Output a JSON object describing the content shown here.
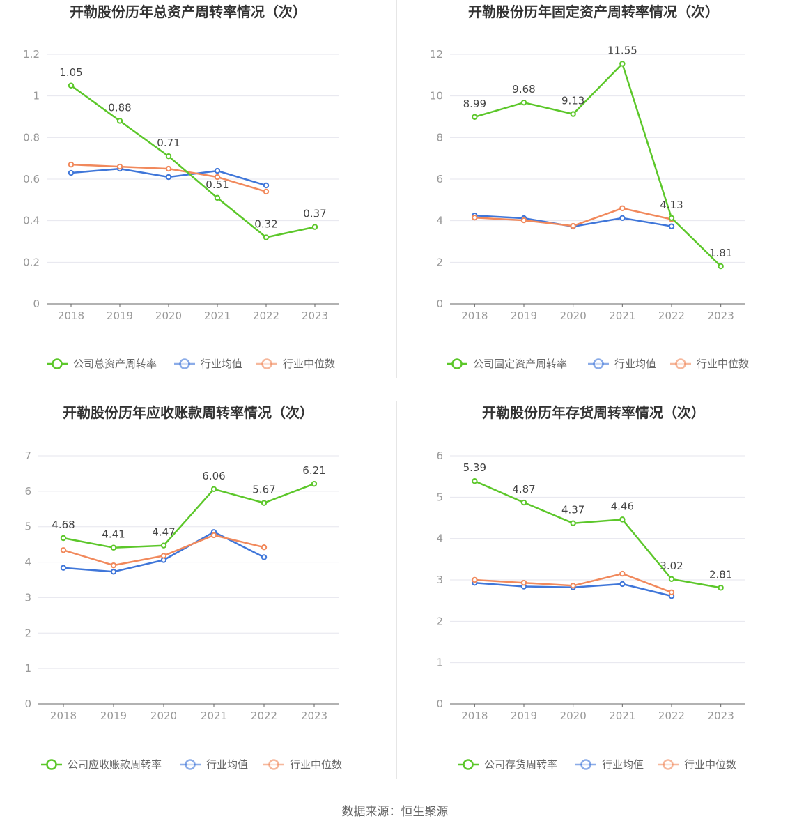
{
  "source_text": "数据来源：恒生聚源",
  "colors": {
    "company": "#5cc72a",
    "avg": "#3f76d9",
    "median": "#f1895c",
    "grid": "#e6e6ee",
    "axis": "#666666"
  },
  "chart_data": [
    {
      "type": "line",
      "title": "开勒股份历年总资产周转率情况（次）",
      "categories": [
        "2018",
        "2019",
        "2020",
        "2021",
        "2022",
        "2023"
      ],
      "ylim": [
        0,
        1.2
      ],
      "yticks": [
        "0",
        "0.2",
        "0.4",
        "0.6",
        "0.8",
        "1",
        "1.2"
      ],
      "ytick_values": [
        0,
        0.2,
        0.4,
        0.6,
        0.8,
        1,
        1.2
      ],
      "series": [
        {
          "name": "公司总资产周转率",
          "role": "company",
          "values": [
            1.05,
            0.88,
            0.71,
            0.51,
            0.32,
            0.37
          ],
          "labels": [
            "1.05",
            "0.88",
            "0.71",
            "0.51",
            "0.32",
            "0.37"
          ]
        },
        {
          "name": "行业均值",
          "role": "avg",
          "values": [
            0.63,
            0.65,
            0.61,
            0.64,
            0.57,
            null
          ]
        },
        {
          "name": "行业中位数",
          "role": "median",
          "values": [
            0.67,
            0.66,
            0.65,
            0.61,
            0.54,
            null
          ]
        }
      ],
      "legend": "bottom"
    },
    {
      "type": "line",
      "title": "开勒股份历年固定资产周转率情况（次）",
      "categories": [
        "2018",
        "2019",
        "2020",
        "2021",
        "2022",
        "2023"
      ],
      "ylim": [
        0,
        12
      ],
      "yticks": [
        "0",
        "2",
        "4",
        "6",
        "8",
        "10",
        "12"
      ],
      "ytick_values": [
        0,
        2,
        4,
        6,
        8,
        10,
        12
      ],
      "series": [
        {
          "name": "公司固定资产周转率",
          "role": "company",
          "values": [
            8.99,
            9.68,
            9.13,
            11.55,
            4.13,
            1.81
          ],
          "labels": [
            "8.99",
            "9.68",
            "9.13",
            "11.55",
            "4.13",
            "1.81"
          ]
        },
        {
          "name": "行业均值",
          "role": "avg",
          "values": [
            4.25,
            4.12,
            3.72,
            4.13,
            3.73,
            null
          ]
        },
        {
          "name": "行业中位数",
          "role": "median",
          "values": [
            4.15,
            4.02,
            3.75,
            4.6,
            4.07,
            null
          ]
        }
      ],
      "legend": "bottom"
    },
    {
      "type": "line",
      "title": "开勒股份历年应收账款周转率情况（次）",
      "categories": [
        "2018",
        "2019",
        "2020",
        "2021",
        "2022",
        "2023"
      ],
      "ylim": [
        0,
        7
      ],
      "yticks": [
        "0",
        "1",
        "2",
        "3",
        "4",
        "5",
        "6",
        "7"
      ],
      "ytick_values": [
        0,
        1,
        2,
        3,
        4,
        5,
        6,
        7
      ],
      "series": [
        {
          "name": "公司应收账款周转率",
          "role": "company",
          "values": [
            4.68,
            4.41,
            4.47,
            6.06,
            5.67,
            6.21
          ],
          "labels": [
            "4.68",
            "4.41",
            "4.47",
            "6.06",
            "5.67",
            "6.21"
          ]
        },
        {
          "name": "行业均值",
          "role": "avg",
          "values": [
            3.84,
            3.73,
            4.06,
            4.85,
            4.14,
            null
          ]
        },
        {
          "name": "行业中位数",
          "role": "median",
          "values": [
            4.34,
            3.91,
            4.18,
            4.76,
            4.42,
            null
          ]
        }
      ],
      "legend": "bottom"
    },
    {
      "type": "line",
      "title": "开勒股份历年存货周转率情况（次）",
      "categories": [
        "2018",
        "2019",
        "2020",
        "2021",
        "2022",
        "2023"
      ],
      "ylim": [
        0,
        6
      ],
      "yticks": [
        "0",
        "1",
        "2",
        "3",
        "4",
        "5",
        "6"
      ],
      "ytick_values": [
        0,
        1,
        2,
        3,
        4,
        5,
        6
      ],
      "series": [
        {
          "name": "公司存货周转率",
          "role": "company",
          "values": [
            5.39,
            4.87,
            4.37,
            4.46,
            3.02,
            2.81
          ],
          "labels": [
            "5.39",
            "4.87",
            "4.37",
            "4.46",
            "3.02",
            "2.81"
          ]
        },
        {
          "name": "行业均值",
          "role": "avg",
          "values": [
            2.93,
            2.84,
            2.82,
            2.9,
            2.61,
            null
          ]
        },
        {
          "name": "行业中位数",
          "role": "median",
          "values": [
            3.0,
            2.93,
            2.86,
            3.15,
            2.7,
            null
          ]
        }
      ],
      "legend": "bottom"
    }
  ]
}
